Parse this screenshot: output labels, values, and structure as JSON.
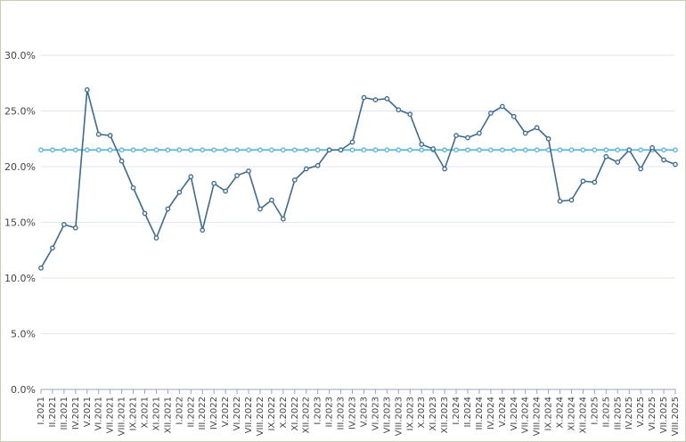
{
  "chart_data": {
    "type": "line",
    "title": "",
    "xlabel": "",
    "ylabel": "",
    "ylim": [
      0,
      30
    ],
    "y_ticks": [
      "0.0%",
      "5.0%",
      "10.0%",
      "15.0%",
      "20.0%",
      "25.0%",
      "30.0%"
    ],
    "grid": "horizontal",
    "categories": [
      "I.2021",
      "II.2021",
      "III.2021",
      "IV.2021",
      "V.2021",
      "VI.2021",
      "VII.2021",
      "VIII.2021",
      "IX.2021",
      "X.2021",
      "XI.2021",
      "XII.2021",
      "I.2022",
      "II.2022",
      "III.2022",
      "IV.2022",
      "V.2022",
      "VI.2022",
      "VII.2022",
      "VIII.2022",
      "IX.2022",
      "X.2022",
      "XI.2022",
      "XII.2022",
      "I.2023",
      "II.2023",
      "III.2023",
      "IV.2023",
      "V.2023",
      "VI.2023",
      "VII.2023",
      "VIII.2023",
      "IX.2023",
      "X.2023",
      "XI.2023",
      "XII.2023",
      "I.2024",
      "II.2024",
      "III.2024",
      "IV.2024",
      "V.2024",
      "VI.2024",
      "VII.2024",
      "VIII.2024",
      "IX.2024",
      "X.2024",
      "XI.2024",
      "XII.2024",
      "I.2025",
      "II.2025",
      "III.2025",
      "IV.2025",
      "V.2025",
      "VI.2025",
      "VII.2025",
      "VIII.2025"
    ],
    "x_tick_labels": [
      "I.2021",
      "II.2021",
      "III.2021",
      "IV.2021",
      "V.2021",
      "VI.2021",
      "VII.2021",
      "VIII.2021",
      "IX.2021",
      "X.2021",
      "XI.2021",
      "XII.2021",
      "I.2022",
      "II.2022",
      "III.2022",
      "IV.2022",
      "V.2022",
      "VI.2022",
      "VII.2022",
      "VIII.2022",
      "IX.2022",
      "X.2022",
      "XI.2022",
      "XII.2022",
      "I.2023",
      "II.2023",
      "III.2023",
      "IV.2023",
      "V.2023",
      "VI.2023",
      "VII.2023",
      "VIII.2023",
      "IX.2023",
      "X.2023",
      "XI.2023",
      "XII.2023",
      "I.2024",
      "II.2024",
      "III.2024",
      "IV.2024",
      "V.2024",
      "VI.2024",
      "VII.2024",
      "VIII.2024",
      "IX.2024",
      "X.2024",
      "XI.2024",
      "XII.2024",
      "I.2025",
      "II.2025",
      "III.2025",
      "IV.2025",
      "V.2025",
      "VI.2025",
      "VII.2025",
      "VIII.2025"
    ],
    "series": [
      {
        "color": "#3d6b8e",
        "values": [
          10.9,
          12.7,
          14.8,
          14.5,
          26.9,
          22.9,
          22.8,
          20.5,
          18.1,
          15.8,
          13.6,
          16.2,
          17.7,
          19.1,
          14.3,
          18.5,
          17.8,
          19.2,
          19.6,
          16.2,
          17.0,
          15.3,
          18.8,
          19.8,
          20.1,
          21.5,
          21.5,
          22.2,
          26.2,
          26.0,
          26.1,
          25.1,
          24.7,
          22.0,
          21.6,
          19.8,
          22.8,
          22.6,
          23.0,
          24.8,
          25.4,
          24.5,
          23.0,
          23.5,
          22.5,
          16.9,
          17.0,
          18.7,
          18.6,
          20.9,
          20.4,
          21.5,
          19.8,
          21.7,
          20.6,
          20.2
        ]
      },
      {
        "color": "#5ab4dc",
        "values": [
          21.5,
          21.5,
          21.5,
          21.5,
          21.5,
          21.5,
          21.5,
          21.5,
          21.5,
          21.5,
          21.5,
          21.5,
          21.5,
          21.5,
          21.5,
          21.5,
          21.5,
          21.5,
          21.5,
          21.5,
          21.5,
          21.5,
          21.5,
          21.5,
          21.5,
          21.5,
          21.5,
          21.5,
          21.5,
          21.5,
          21.5,
          21.5,
          21.5,
          21.5,
          21.5,
          21.5,
          21.5,
          21.5,
          21.5,
          21.5,
          21.5,
          21.5,
          21.5,
          21.5,
          21.5,
          21.5,
          21.5,
          21.5,
          21.5,
          21.5,
          21.5,
          21.5,
          21.5,
          21.5,
          21.5,
          21.5
        ]
      }
    ]
  }
}
